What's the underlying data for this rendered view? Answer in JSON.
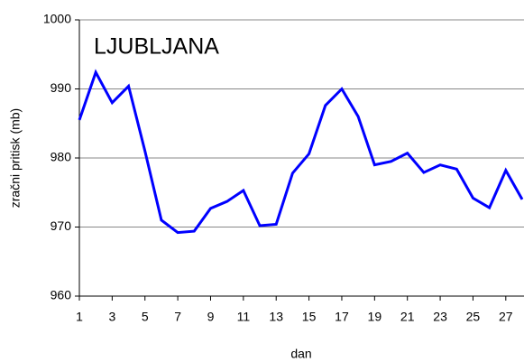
{
  "chart_data": {
    "type": "line",
    "annotation": "LJUBLJANA",
    "x_label": "dan",
    "y_label": "zračni pritisk (mb)",
    "x": [
      1,
      2,
      3,
      4,
      5,
      6,
      7,
      8,
      9,
      10,
      11,
      12,
      13,
      14,
      15,
      16,
      17,
      18,
      19,
      20,
      21,
      22,
      23,
      24,
      25,
      26,
      27,
      28
    ],
    "series": [
      {
        "name": "LJUBLJANA",
        "color": "#0000ff",
        "values": [
          985.5,
          992.4,
          988.0,
          990.4,
          981.0,
          971.0,
          969.2,
          969.4,
          972.7,
          973.7,
          975.3,
          970.2,
          970.4,
          977.8,
          980.6,
          987.6,
          990.0,
          986.0,
          979.0,
          979.5,
          980.7,
          977.9,
          979.0,
          978.4,
          974.2,
          972.8,
          978.2,
          974.0
        ]
      }
    ],
    "xlim": [
      1,
      28
    ],
    "xticks": [
      1,
      3,
      5,
      7,
      9,
      11,
      13,
      15,
      17,
      19,
      21,
      23,
      25,
      27
    ],
    "ylim": [
      960,
      1000
    ],
    "yticks": [
      960,
      970,
      980,
      990,
      1000
    ],
    "grid": true
  }
}
